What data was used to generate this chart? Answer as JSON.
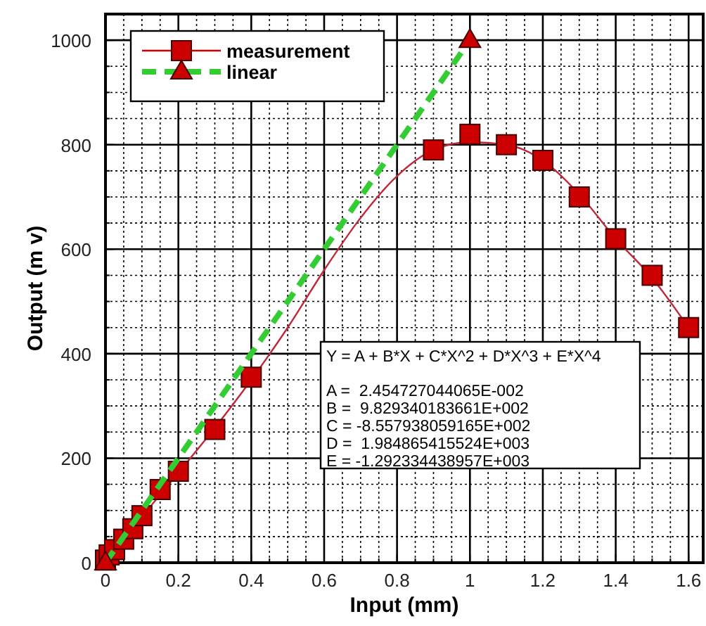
{
  "chart_data": {
    "type": "line",
    "xlabel": "Input (mm)",
    "ylabel": "Output (m v)",
    "xlim": [
      0,
      1.64
    ],
    "ylim": [
      0,
      1050
    ],
    "xticks": [
      0,
      {
        "value": 0.05,
        "label": null
      },
      {
        "value": 0.1,
        "label": null
      },
      {
        "value": 0.15,
        "label": null
      },
      0.2,
      {
        "value": 0.25,
        "label": null
      },
      {
        "value": 0.3,
        "label": null
      },
      {
        "value": 0.35,
        "label": null
      },
      0.4,
      {
        "value": 0.45,
        "label": null
      },
      {
        "value": 0.5,
        "label": null
      },
      {
        "value": 0.55,
        "label": null
      },
      0.6,
      {
        "value": 0.65,
        "label": null
      },
      {
        "value": 0.7,
        "label": null
      },
      {
        "value": 0.75,
        "label": null
      },
      0.8,
      {
        "value": 0.85,
        "label": null
      },
      {
        "value": 0.9,
        "label": null
      },
      {
        "value": 0.95,
        "label": null
      },
      1,
      {
        "value": 1.05,
        "label": null
      },
      {
        "value": 1.1,
        "label": null
      },
      {
        "value": 1.15,
        "label": null
      },
      1.2,
      {
        "value": 1.25,
        "label": null
      },
      {
        "value": 1.3,
        "label": null
      },
      {
        "value": 1.35,
        "label": null
      },
      1.4,
      {
        "value": 1.45,
        "label": null
      },
      {
        "value": 1.5,
        "label": null
      },
      {
        "value": 1.55,
        "label": null
      },
      1.6
    ],
    "yticks": [
      0,
      {
        "value": 50,
        "label": null
      },
      {
        "value": 100,
        "label": null
      },
      {
        "value": 150,
        "label": null
      },
      200,
      {
        "value": 250,
        "label": null
      },
      {
        "value": 300,
        "label": null
      },
      {
        "value": 350,
        "label": null
      },
      400,
      {
        "value": 450,
        "label": null
      },
      {
        "value": 500,
        "label": null
      },
      {
        "value": 550,
        "label": null
      },
      600,
      {
        "value": 650,
        "label": null
      },
      {
        "value": 700,
        "label": null
      },
      {
        "value": 750,
        "label": null
      },
      800,
      {
        "value": 850,
        "label": null
      },
      {
        "value": 900,
        "label": null
      },
      {
        "value": 950,
        "label": null
      },
      1000,
      {
        "value": 1050,
        "label": null
      }
    ],
    "grid": true,
    "legend": "top left",
    "series": [
      {
        "color": "#c0283a",
        "marker": "none",
        "line_style": "solid",
        "x": [
          0,
          0.1,
          0.2,
          0.3,
          0.4,
          0.5,
          0.6,
          0.7,
          0.8,
          0.9,
          1,
          1.1,
          1.2,
          1.3,
          1.4,
          1.5,
          1.6
        ],
        "values": [
          0,
          88,
          172,
          258,
          350,
          450,
          560,
          660,
          740,
          790,
          805,
          800,
          770,
          705,
          620,
          545,
          450
        ]
      },
      {
        "name": "measurement",
        "type": "scatter",
        "color": "#cc0000",
        "marker": "square",
        "x": [
          0,
          0.01,
          0.025,
          0.05,
          0.075,
          0.1,
          0.15,
          0.2,
          0.3,
          0.4,
          0.9,
          1,
          1.1,
          1.2,
          1.3,
          1.4,
          1.5,
          1.6
        ],
        "values": [
          5,
          15,
          25,
          45,
          65,
          90,
          140,
          175,
          255,
          355,
          790,
          820,
          800,
          770,
          700,
          620,
          550,
          450
        ]
      },
      {
        "name": "linear",
        "color": "#33cc33",
        "marker": "triangle",
        "line_style": "dashed",
        "x": [
          0,
          1
        ],
        "values": [
          0,
          1000
        ]
      }
    ],
    "annotations": [
      "Y = A + B*X + C*X^2 + D*X^3 + E*X^4",
      "A =  2.454727044065E-002",
      "B =  9.829340183661E+002",
      "C = -8.557938059165E+002",
      "D =  1.984865415524E+003",
      "E = -1.292334438957E+003"
    ]
  }
}
